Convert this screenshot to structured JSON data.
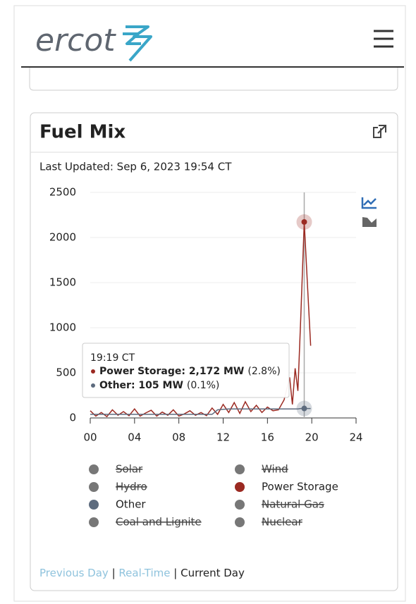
{
  "header": {
    "logo": "ercot"
  },
  "card": {
    "title": "Fuel Mix",
    "last_updated": "Last Updated: Sep 6, 2023 19:54 CT"
  },
  "chart_data": {
    "type": "line",
    "x": [
      0,
      0.5,
      1,
      1.5,
      2,
      2.5,
      3,
      3.5,
      4,
      4.5,
      5,
      5.5,
      6,
      6.5,
      7,
      7.5,
      8,
      8.5,
      9,
      9.5,
      10,
      10.5,
      11,
      11.5,
      12,
      12.5,
      13,
      13.5,
      14,
      14.5,
      15,
      15.5,
      16,
      16.5,
      17,
      17.5,
      18,
      18.25,
      18.5,
      18.75,
      19,
      19.32,
      19.6,
      19.9
    ],
    "series": [
      {
        "name": "Solar",
        "color": "#777777",
        "visible": false
      },
      {
        "name": "Wind",
        "color": "#777777",
        "visible": false
      },
      {
        "name": "Hydro",
        "color": "#777777",
        "visible": false
      },
      {
        "name": "Power Storage",
        "color": "#9b2a22",
        "visible": true,
        "values": [
          80,
          20,
          60,
          15,
          90,
          30,
          70,
          25,
          100,
          20,
          55,
          85,
          20,
          65,
          30,
          90,
          20,
          45,
          80,
          30,
          60,
          25,
          110,
          40,
          150,
          60,
          170,
          50,
          180,
          70,
          140,
          60,
          120,
          80,
          90,
          200,
          450,
          150,
          550,
          300,
          1100,
          2172,
          1500,
          800
        ]
      },
      {
        "name": "Other",
        "color": "#5d6b7e",
        "visible": true,
        "values": [
          40,
          40,
          40,
          40,
          40,
          40,
          40,
          40,
          40,
          40,
          40,
          40,
          40,
          40,
          40,
          40,
          40,
          40,
          40,
          40,
          40,
          40,
          40,
          90,
          95,
          100,
          100,
          100,
          100,
          100,
          100,
          100,
          100,
          100,
          100,
          100,
          100,
          100,
          100,
          100,
          105,
          105,
          105,
          105
        ]
      },
      {
        "name": "Natural Gas",
        "color": "#777777",
        "visible": false
      },
      {
        "name": "Coal and Lignite",
        "color": "#777777",
        "visible": false
      },
      {
        "name": "Nuclear",
        "color": "#777777",
        "visible": false
      }
    ],
    "xlim": [
      0,
      24
    ],
    "xticks": [
      {
        "value": 0,
        "label": "00"
      },
      {
        "value": 4,
        "label": "04"
      },
      {
        "value": 8,
        "label": "08"
      },
      12,
      16,
      20,
      24
    ],
    "ylim": [
      0,
      2500
    ],
    "yticks": [
      0,
      500,
      1000,
      1500,
      2000,
      2500
    ],
    "grid": true,
    "hover_index": 41,
    "tooltip": {
      "time": "19:19 CT",
      "items": [
        {
          "label": "Power Storage: 2,172 MW",
          "share": "(2.8%)",
          "series": 3
        },
        {
          "label": "Other: 105 MW",
          "share": "(0.1%)",
          "series": 4
        }
      ]
    }
  },
  "footer": {
    "previous": "Previous Day",
    "separator": "|",
    "realtime": "Real-Time",
    "current": "Current Day"
  }
}
